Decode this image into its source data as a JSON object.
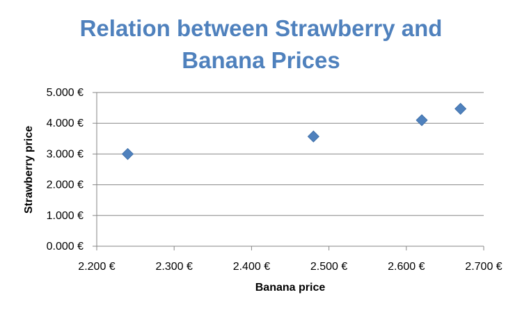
{
  "colors": {
    "title": "#4F81BD",
    "marker": "#4F81BD",
    "gridline": "#868686",
    "axis": "#868686",
    "background": "#FFFFFF"
  },
  "chart_data": {
    "type": "scatter",
    "title_lines": [
      "Relation between Strawberry and",
      "Banana Prices"
    ],
    "xlabel": "Banana price",
    "ylabel": "Strawberry price",
    "xlim": [
      2.2,
      2.7
    ],
    "ylim": [
      0,
      5
    ],
    "x_ticks": [
      "2.200 €",
      "2.300 €",
      "2.400 €",
      "2.500 €",
      "2.600 €",
      "2.700 €"
    ],
    "y_ticks": [
      "0.000 €",
      "1.000 €",
      "2.000 €",
      "3.000 €",
      "4.000 €",
      "5.000 €"
    ],
    "x": [
      2.24,
      2.48,
      2.62,
      2.67
    ],
    "y": [
      3.0,
      3.57,
      4.1,
      4.47
    ],
    "marker": "diamond",
    "grid": "horizontal",
    "legend": "none"
  }
}
